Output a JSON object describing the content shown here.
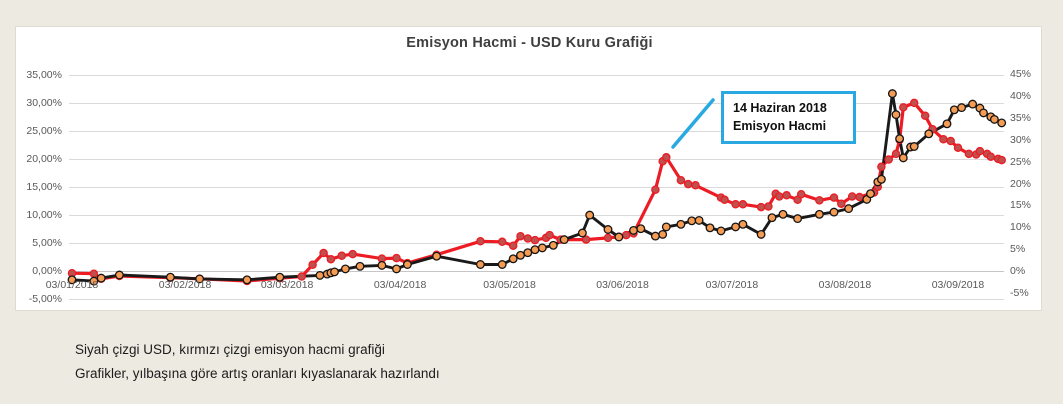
{
  "chart_data": {
    "type": "line",
    "title": "Emisyon Hacmi - USD Kuru Grafiği",
    "grid": "horizontal-only",
    "legend": "none",
    "x_axis_note": "day offsets measured in days since 03/01/2018 (dd/mm/yyyy)",
    "x_tick_labels": [
      "03/01/2018",
      "03/02/2018",
      "03/03/2018",
      "03/04/2018",
      "03/05/2018",
      "03/06/2018",
      "03/07/2018",
      "03/08/2018",
      "03/09/2018"
    ],
    "x_tick_day_offsets": [
      0,
      31,
      59,
      90,
      120,
      151,
      181,
      212,
      243
    ],
    "left_axis": {
      "range": [
        -5,
        35
      ],
      "tick_step": 5,
      "tick_labels": [
        "35,00%",
        "30,00%",
        "25,00%",
        "20,00%",
        "15,00%",
        "10,00%",
        "5,00%",
        "0,00%",
        "-5,00%"
      ]
    },
    "right_axis": {
      "range": [
        -5,
        45
      ],
      "tick_step": 5,
      "tick_labels": [
        "45%",
        "40%",
        "35%",
        "30%",
        "25%",
        "20%",
        "15%",
        "10%",
        "5%",
        "0%",
        "-5%"
      ]
    },
    "annotation": {
      "line1": "14 Haziran 2018",
      "line2": "Emisyon Hacmi",
      "color": "#29a8e2"
    },
    "series": [
      {
        "id": "emisyon",
        "name": "Emisyon Hacmi",
        "axis": "left",
        "line_color": "#ed1c24",
        "line_width": 3.2,
        "marker_color": "#c0504d",
        "marker_stroke": "#ed1c24",
        "marker_radius": 3.6,
        "points_day_value": [
          [
            0,
            -0.3
          ],
          [
            6,
            -0.4
          ],
          [
            8,
            -1.3
          ],
          [
            13,
            -0.8
          ],
          [
            27,
            -1.1
          ],
          [
            35,
            -1.3
          ],
          [
            48,
            -1.7
          ],
          [
            57,
            -1.2
          ],
          [
            63,
            -0.9
          ],
          [
            66,
            1.2
          ],
          [
            69,
            3.3
          ],
          [
            71,
            2.2
          ],
          [
            74,
            2.8
          ],
          [
            77,
            3.1
          ],
          [
            85,
            2.3
          ],
          [
            89,
            2.4
          ],
          [
            92,
            1.5
          ],
          [
            100,
            3.0
          ],
          [
            112,
            5.4
          ],
          [
            118,
            5.3
          ],
          [
            121,
            4.6
          ],
          [
            123,
            6.3
          ],
          [
            125,
            5.9
          ],
          [
            127,
            5.6
          ],
          [
            130,
            6.0
          ],
          [
            131,
            6.5
          ],
          [
            134,
            5.7
          ],
          [
            141,
            5.7
          ],
          [
            147,
            6.0
          ],
          [
            150,
            6.2
          ],
          [
            152,
            6.5
          ],
          [
            154,
            6.8
          ],
          [
            160,
            14.6
          ],
          [
            162,
            19.7
          ],
          [
            163,
            20.4
          ],
          [
            167,
            16.3
          ],
          [
            169,
            15.6
          ],
          [
            171,
            15.4
          ],
          [
            178,
            13.2
          ],
          [
            179,
            12.8
          ],
          [
            182,
            12.0
          ],
          [
            184,
            12.0
          ],
          [
            189,
            11.5
          ],
          [
            191,
            11.6
          ],
          [
            193,
            13.9
          ],
          [
            194,
            13.4
          ],
          [
            196,
            13.6
          ],
          [
            199,
            12.8
          ],
          [
            200,
            13.8
          ],
          [
            205,
            12.7
          ],
          [
            209,
            13.2
          ],
          [
            211,
            12.1
          ],
          [
            214,
            13.4
          ],
          [
            216,
            13.3
          ],
          [
            219,
            13.9
          ],
          [
            220,
            14.1
          ],
          [
            221,
            15.1
          ],
          [
            222,
            18.7
          ],
          [
            224,
            20.0
          ],
          [
            226,
            21.0
          ],
          [
            227,
            23.5
          ],
          [
            228,
            29.3
          ],
          [
            231,
            30.1
          ],
          [
            234,
            27.8
          ],
          [
            236,
            25.4
          ],
          [
            239,
            23.6
          ],
          [
            241,
            23.3
          ],
          [
            243,
            22.1
          ],
          [
            246,
            21.0
          ],
          [
            248,
            20.9
          ],
          [
            249,
            21.5
          ],
          [
            251,
            21.0
          ],
          [
            252,
            20.5
          ],
          [
            254,
            20.1
          ],
          [
            255,
            19.9
          ]
        ]
      },
      {
        "id": "usd",
        "name": "USD",
        "axis": "right",
        "line_color": "#1a1a1a",
        "line_width": 2.9,
        "marker_color": "#f49c54",
        "marker_stroke": "#141414",
        "marker_radius": 3.8,
        "points_day_value": [
          [
            0,
            -1.9
          ],
          [
            6,
            -2.2
          ],
          [
            8,
            -1.5
          ],
          [
            13,
            -0.8
          ],
          [
            27,
            -1.3
          ],
          [
            35,
            -1.7
          ],
          [
            48,
            -1.9
          ],
          [
            57,
            -1.3
          ],
          [
            68,
            -0.9
          ],
          [
            70,
            -0.6
          ],
          [
            71,
            -0.3
          ],
          [
            72,
            -0.1
          ],
          [
            75,
            0.6
          ],
          [
            79,
            1.2
          ],
          [
            85,
            1.4
          ],
          [
            89,
            0.6
          ],
          [
            92,
            1.6
          ],
          [
            100,
            3.5
          ],
          [
            112,
            1.6
          ],
          [
            118,
            1.6
          ],
          [
            121,
            2.9
          ],
          [
            123,
            3.7
          ],
          [
            125,
            4.3
          ],
          [
            127,
            5.0
          ],
          [
            129,
            5.4
          ],
          [
            132,
            6.0
          ],
          [
            135,
            7.3
          ],
          [
            140,
            8.8
          ],
          [
            142,
            12.9
          ],
          [
            147,
            9.6
          ],
          [
            150,
            7.9
          ],
          [
            154,
            9.4
          ],
          [
            156,
            9.8
          ],
          [
            160,
            8.1
          ],
          [
            162,
            8.5
          ],
          [
            163,
            10.2
          ],
          [
            167,
            10.8
          ],
          [
            170,
            11.6
          ],
          [
            172,
            11.7
          ],
          [
            175,
            10.0
          ],
          [
            178,
            9.3
          ],
          [
            182,
            10.2
          ],
          [
            184,
            10.8
          ],
          [
            189,
            8.5
          ],
          [
            192,
            12.3
          ],
          [
            195,
            13.1
          ],
          [
            199,
            12.1
          ],
          [
            205,
            13.1
          ],
          [
            209,
            13.6
          ],
          [
            213,
            14.4
          ],
          [
            218,
            16.5
          ],
          [
            219,
            17.8
          ],
          [
            221,
            20.5
          ],
          [
            222,
            21.1
          ],
          [
            225,
            40.7
          ],
          [
            226,
            35.9
          ],
          [
            227,
            30.4
          ],
          [
            228,
            26.0
          ],
          [
            230,
            28.5
          ],
          [
            231,
            28.6
          ],
          [
            235,
            31.5
          ],
          [
            240,
            33.8
          ],
          [
            242,
            37.0
          ],
          [
            244,
            37.5
          ],
          [
            247,
            38.3
          ],
          [
            249,
            37.4
          ],
          [
            250,
            36.3
          ],
          [
            252,
            35.4
          ],
          [
            253,
            34.8
          ],
          [
            255,
            34.0
          ]
        ]
      }
    ]
  },
  "caption": {
    "line1": "Siyah çizgi USD, kırmızı çizgi emisyon hacmi grafiği",
    "line2": "Grafikler, yılbaşına göre artış oranları kıyaslanarak hazırlandı"
  },
  "colors": {
    "page_background": "#edeae1",
    "panel_background": "#ffffff",
    "gridline": "#dadada",
    "axis_text": "#595959",
    "title_text": "#3f3f3f",
    "annotation_blue": "#29a8e2",
    "usd_line": "#1a1a1a",
    "usd_marker": "#f49c54",
    "emisyon_line": "#ed1c24",
    "emisyon_marker": "#c0504d"
  }
}
